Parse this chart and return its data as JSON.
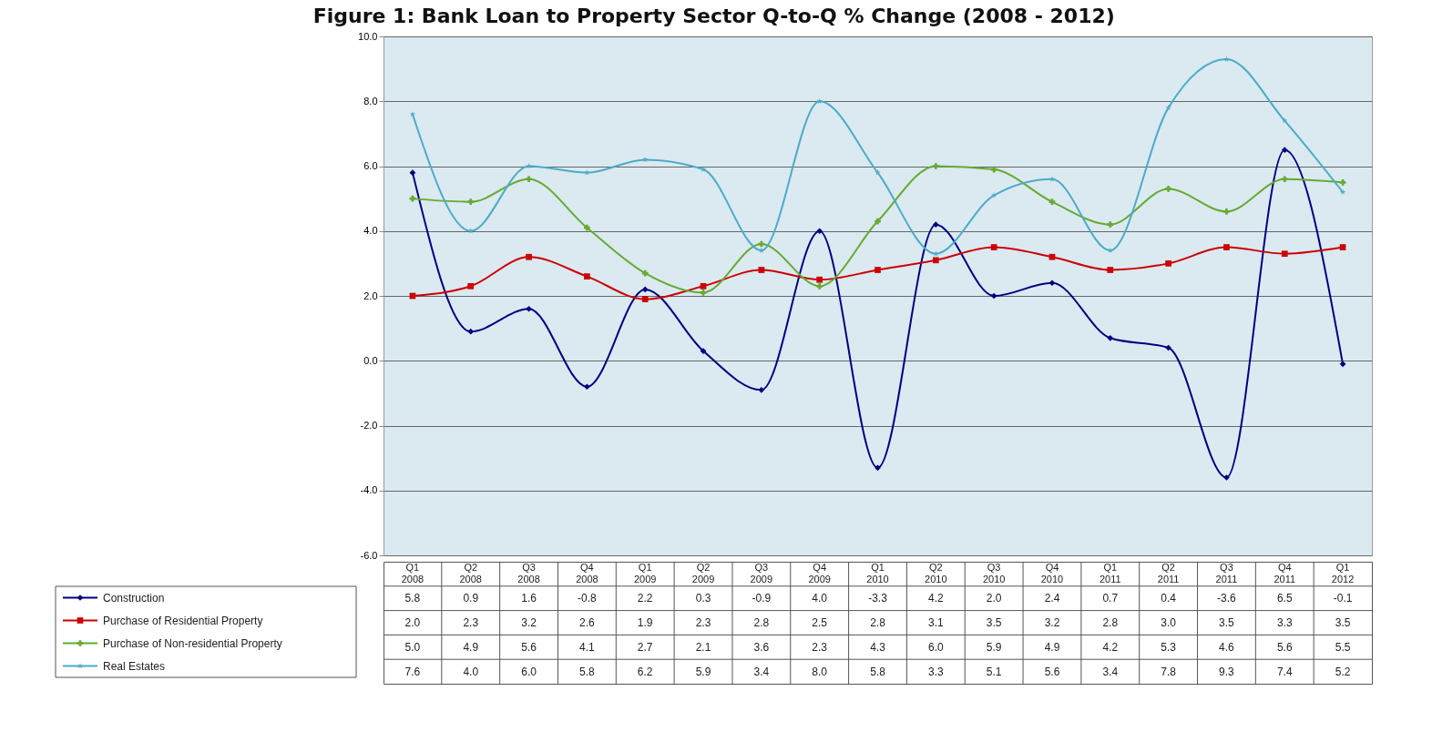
{
  "chart_data": {
    "type": "line",
    "title": "Figure 1: Bank Loan to Property Sector  Q-to-Q % Change (2008 - 2012)",
    "categories": [
      "Q1 2008",
      "Q2 2008",
      "Q3 2008",
      "Q4 2008",
      "Q1 2009",
      "Q2 2009",
      "Q3 2009",
      "Q4 2009",
      "Q1 2010",
      "Q2 2010",
      "Q3 2010",
      "Q4 2010",
      "Q1 2011",
      "Q2 2011",
      "Q3 2011",
      "Q4 2011",
      "Q1 2012"
    ],
    "series": [
      {
        "name": "Construction",
        "color": "#000080",
        "marker": "diamond",
        "values": [
          5.8,
          0.9,
          1.6,
          -0.8,
          2.2,
          0.3,
          -0.9,
          4.0,
          -3.3,
          4.2,
          2.0,
          2.4,
          0.7,
          0.4,
          -3.6,
          6.5,
          -0.1
        ],
        "value_labels": [
          "5.8",
          "0.9",
          "1.6",
          "-0.8",
          "2.2",
          "0.3",
          "-0.9",
          "4.0",
          "-3.3",
          "4.2",
          "2.0",
          "2.4",
          "0.7",
          "0.4",
          "-3.6",
          "6.5",
          "-0.1"
        ]
      },
      {
        "name": "Purchase of Residential Property",
        "color": "#cc0000",
        "marker": "square",
        "values": [
          2.0,
          2.3,
          3.2,
          2.6,
          1.9,
          2.3,
          2.8,
          2.5,
          2.8,
          3.1,
          3.5,
          3.2,
          2.8,
          3.0,
          3.5,
          3.3,
          3.5
        ],
        "value_labels": [
          "2.0",
          "2.3",
          "3.2",
          "2.6",
          "1.9",
          "2.3",
          "2.8",
          "2.5",
          "2.8",
          "3.1",
          "3.5",
          "3.2",
          "2.8",
          "3.0",
          "3.5",
          "3.3",
          "3.5"
        ]
      },
      {
        "name": "Purchase of Non-residential Property",
        "color": "#66aa33",
        "marker": "cross",
        "values": [
          5.0,
          4.9,
          5.6,
          4.1,
          2.7,
          2.1,
          3.6,
          2.3,
          4.3,
          6.0,
          5.9,
          4.9,
          4.2,
          5.3,
          4.6,
          5.6,
          5.5
        ],
        "value_labels": [
          "5.0",
          "4.9",
          "5.6",
          "4.1",
          "2.7",
          "2.1",
          "3.6",
          "2.3",
          "4.3",
          "6.0",
          "5.9",
          "4.9",
          "4.2",
          "5.3",
          "4.6",
          "5.6",
          "5.5"
        ]
      },
      {
        "name": "Real Estates",
        "color": "#4bacc6",
        "marker": "star",
        "values": [
          7.6,
          4.0,
          6.0,
          5.8,
          6.2,
          5.9,
          3.4,
          8.0,
          5.8,
          3.3,
          5.1,
          5.6,
          3.4,
          7.8,
          9.3,
          7.4,
          5.2
        ],
        "value_labels": [
          "7.6",
          "4.0",
          "6.0",
          "5.8",
          "6.2",
          "5.9",
          "3.4",
          "8.0",
          "5.8",
          "3.3",
          "5.1",
          "5.6",
          "3.4",
          "7.8",
          "9.3",
          "7.4",
          "5.2"
        ]
      }
    ],
    "ylim": [
      -6,
      10
    ],
    "yticks": [
      {
        "value": -6,
        "label": "-6.0"
      },
      {
        "value": -4,
        "label": "-4.0"
      },
      {
        "value": -2,
        "label": "-2.0"
      },
      {
        "value": 0,
        "label": "0.0"
      },
      {
        "value": 2,
        "label": "2.0"
      },
      {
        "value": 4,
        "label": "4.0"
      },
      {
        "value": 6,
        "label": "6.0"
      },
      {
        "value": 8,
        "label": "8.0"
      },
      {
        "value": 10,
        "label": "10.0"
      }
    ],
    "grid": "y",
    "legend": "bottom left"
  }
}
